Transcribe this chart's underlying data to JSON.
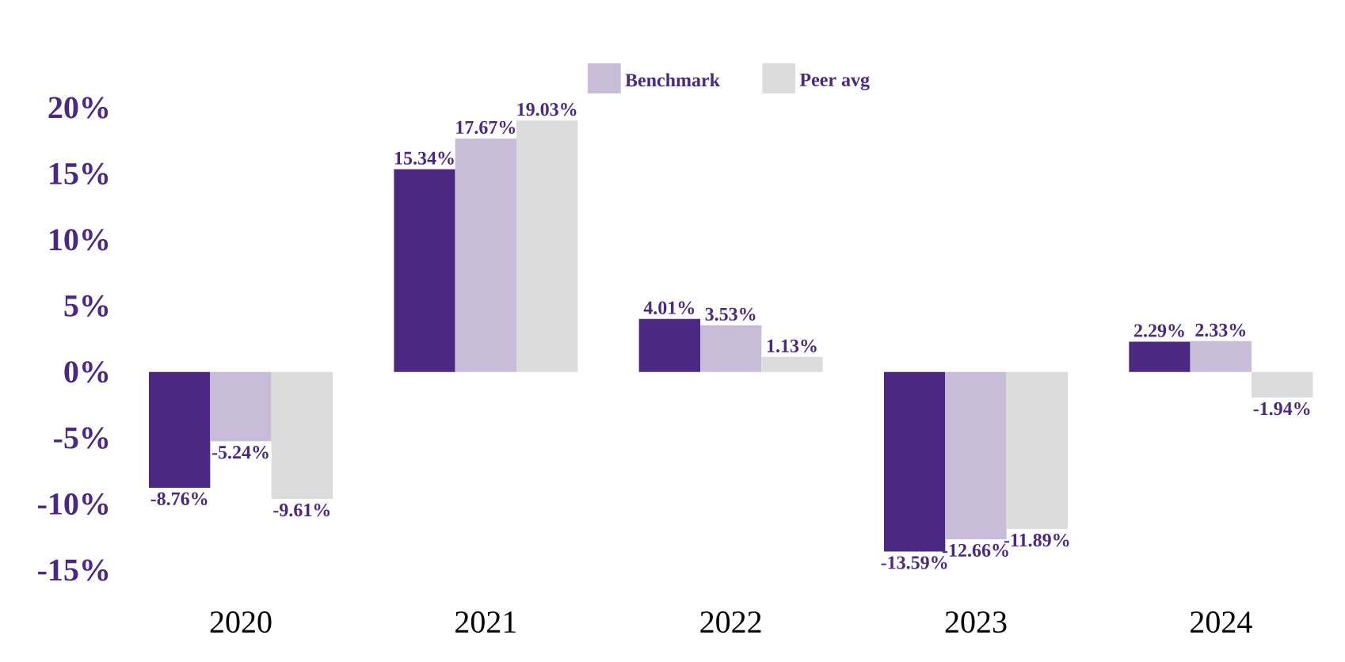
{
  "chart_data": {
    "type": "bar",
    "categories": [
      "2020",
      "2021",
      "2022",
      "2023",
      "2024"
    ],
    "series": [
      {
        "color": "#4b2882",
        "values": [
          -8.76,
          15.34,
          4.01,
          -13.59,
          2.29
        ],
        "value_labels": [
          "-8.76%",
          "15.34%",
          "4.01%",
          "-13.59%",
          "2.29%"
        ]
      },
      {
        "name": "Benchmark",
        "color": "#c9bcd9",
        "values": [
          -5.24,
          17.67,
          3.53,
          -12.66,
          2.33
        ],
        "value_labels": [
          "-5.24%",
          "17.67%",
          "3.53%",
          "-12.66%",
          "2.33%"
        ]
      },
      {
        "name": "Peer avg",
        "color": "#dcdcdc",
        "values": [
          -9.61,
          19.03,
          1.13,
          -11.89,
          -1.94
        ],
        "value_labels": [
          "-9.61%",
          "19.03%",
          "1.13%",
          "-11.89%",
          "-1.94%"
        ]
      }
    ],
    "ylim": [
      -15,
      20
    ],
    "yticks": [
      {
        "value": -15,
        "label": "-15%"
      },
      {
        "value": -10,
        "label": "-10%"
      },
      {
        "value": -5,
        "label": "-5%"
      },
      {
        "value": 0,
        "label": "0%"
      },
      {
        "value": 5,
        "label": "5%"
      },
      {
        "value": 10,
        "label": "10%"
      },
      {
        "value": 15,
        "label": "15%"
      },
      {
        "value": 20,
        "label": "20%"
      }
    ],
    "legend": "top",
    "grid": false
  }
}
